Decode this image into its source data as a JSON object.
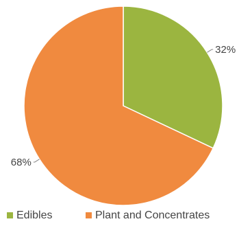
{
  "chart_data": {
    "type": "pie",
    "slices": [
      {
        "label": "Edibles",
        "value": 32,
        "value_label": "32%",
        "color": "#9bb540"
      },
      {
        "label": "Plant and Concentrates",
        "value": 68,
        "value_label": "68%",
        "color": "#f08a3f"
      }
    ],
    "legend_position": "bottom",
    "start_angle": "12 o'clock",
    "direction": "clockwise"
  }
}
